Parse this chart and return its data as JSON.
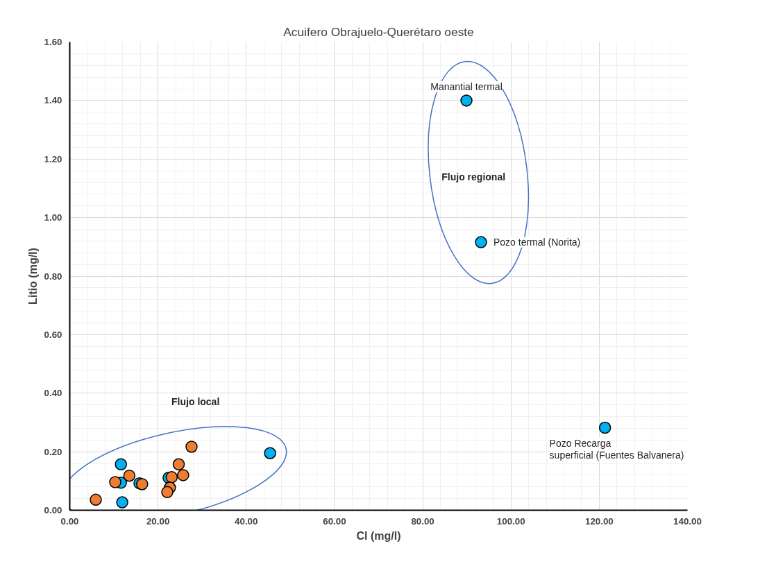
{
  "chart_data": {
    "type": "scatter",
    "title": "Acuifero Obrajuelo-Querétaro oeste",
    "xlabel": "Cl (mg/l)",
    "ylabel": "Litio (mg/l)",
    "xlim": [
      0,
      140
    ],
    "ylim": [
      0,
      1.6
    ],
    "xticks": [
      {
        "value": 0,
        "label": "0.00"
      },
      {
        "value": 20,
        "label": "20.00"
      },
      {
        "value": 40,
        "label": "40.00"
      },
      {
        "value": 60,
        "label": "60.00"
      },
      {
        "value": 80,
        "label": "80.00"
      },
      {
        "value": 100,
        "label": "100.00"
      },
      {
        "value": 120,
        "label": "120.00"
      },
      {
        "value": 140,
        "label": "140.00"
      }
    ],
    "yticks": [
      {
        "value": 0,
        "label": "0.00"
      },
      {
        "value": 0.2,
        "label": "0.20"
      },
      {
        "value": 0.4,
        "label": "0.40"
      },
      {
        "value": 0.6,
        "label": "0.60"
      },
      {
        "value": 0.8,
        "label": "0.80"
      },
      {
        "value": 1.0,
        "label": "1.00"
      },
      {
        "value": 1.2,
        "label": "1.20"
      },
      {
        "value": 1.4,
        "label": "1.40"
      },
      {
        "value": 1.6,
        "label": "1.60"
      }
    ],
    "grid": true,
    "marker": "circle",
    "series": [
      {
        "color": "#00b0f0",
        "x": [
          11.6,
          11.6,
          15.8,
          11.9,
          45.4,
          22.4,
          89.9,
          93.2,
          121.3
        ],
        "values": [
          0.157,
          0.094,
          0.092,
          0.027,
          0.195,
          0.111,
          1.4,
          0.916,
          0.282
        ]
      },
      {
        "color": "#ed7d31",
        "x": [
          5.9,
          10.3,
          13.5,
          16.4,
          23.1,
          22.7,
          22.1,
          24.7,
          25.7,
          27.6
        ],
        "values": [
          0.036,
          0.096,
          0.118,
          0.089,
          0.113,
          0.077,
          0.062,
          0.157,
          0.12,
          0.217
        ]
      }
    ],
    "annotations": [
      {
        "text": "Manantial termal",
        "x": 89.9,
        "y": 1.4
      },
      {
        "text": "Pozo termal (Norita)",
        "x": 93.2,
        "y": 0.916
      },
      {
        "text": "Pozo Recarga\nsuperficial (Fuentes Balvanera)",
        "x": 121.3,
        "y": 0.282
      },
      "Flujo regional",
      "Flujo local"
    ]
  }
}
